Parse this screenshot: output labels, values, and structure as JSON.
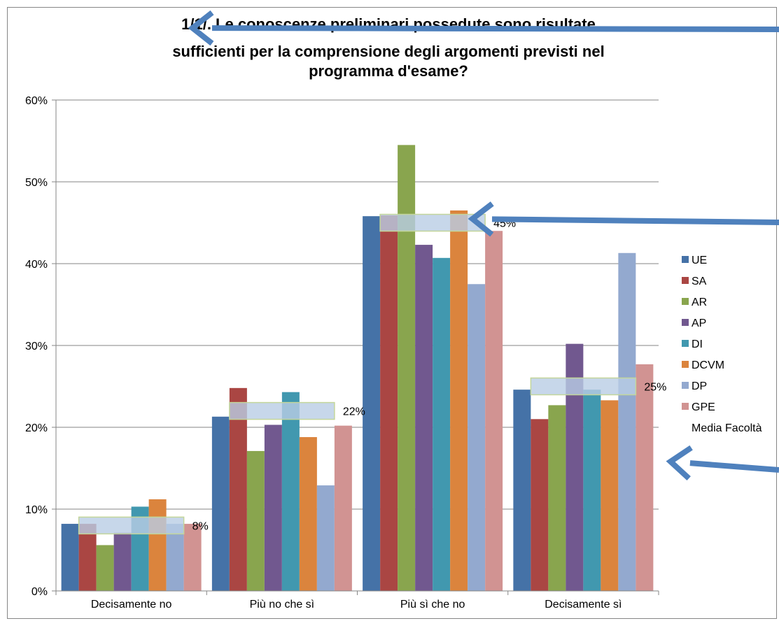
{
  "chart_data": {
    "type": "bar",
    "title_lines": [
      "1/1/. Le conoscenze preliminari possedute sono risultate",
      "sufficienti per la comprensione degli argomenti previsti nel",
      "programma d'esame?"
    ],
    "categories": [
      "Decisamente no",
      "Più no che sì",
      "Più sì che no",
      "Decisamente sì"
    ],
    "ylim": [
      0,
      0.6
    ],
    "yticks": [
      "0%",
      "10%",
      "20%",
      "30%",
      "40%",
      "50%",
      "60%"
    ],
    "grid": true,
    "legend_position": "right",
    "series": [
      {
        "name": "UE",
        "color": "#4572A7",
        "values": [
          0.082,
          0.213,
          0.458,
          0.246
        ]
      },
      {
        "name": "SA",
        "color": "#AA4643",
        "values": [
          0.082,
          0.248,
          0.459,
          0.21
        ]
      },
      {
        "name": "AR",
        "color": "#89A54E",
        "values": [
          0.056,
          0.171,
          0.545,
          0.227
        ]
      },
      {
        "name": "AP",
        "color": "#71588F",
        "values": [
          0.071,
          0.203,
          0.423,
          0.302
        ]
      },
      {
        "name": "DI",
        "color": "#4198AF",
        "values": [
          0.103,
          0.243,
          0.407,
          0.246
        ]
      },
      {
        "name": "DCVM",
        "color": "#DB843D",
        "values": [
          0.112,
          0.188,
          0.465,
          0.233
        ]
      },
      {
        "name": "DP",
        "color": "#93A9CF",
        "values": [
          0.082,
          0.129,
          0.375,
          0.413
        ]
      },
      {
        "name": "GPE",
        "color": "#D19392",
        "values": [
          0.082,
          0.202,
          0.44,
          0.277
        ]
      },
      {
        "name": "Media Facoltà",
        "color": "#B9CDE5",
        "values": [
          0.08,
          0.22,
          0.45,
          0.25
        ]
      }
    ],
    "average_labels": [
      "8%",
      "22%",
      "45%",
      "25%"
    ]
  }
}
